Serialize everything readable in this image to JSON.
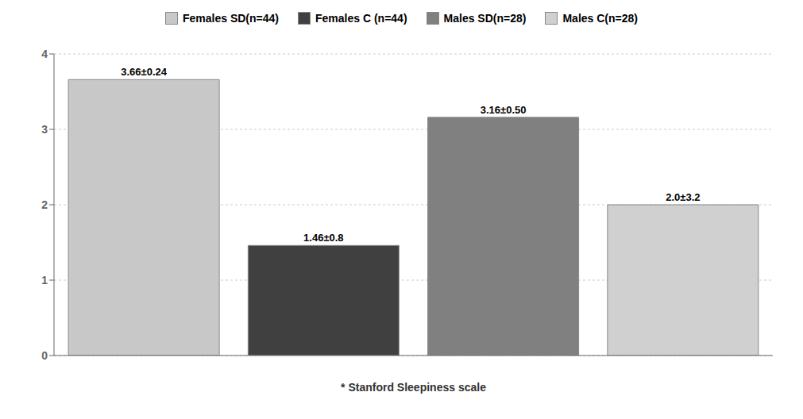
{
  "chart_data": {
    "type": "bar",
    "categories": [
      "Females SD(n=44)",
      "Females C (n=44)",
      "Males SD(n=28)",
      "Males C(n=28)"
    ],
    "values": [
      3.66,
      1.46,
      3.16,
      2.0
    ],
    "value_labels": [
      "3.66±0.24",
      "1.46±0.8",
      "3.16±0.50",
      "2.0±3.2"
    ],
    "colors": [
      "#c8c8c8",
      "#404040",
      "#808080",
      "#d0d0d0"
    ],
    "xlabel": "* Stanford Sleepiness scale",
    "ylim": [
      0,
      4
    ],
    "yticks": [
      0,
      1,
      2,
      3,
      4
    ],
    "grid": true,
    "legend": "top",
    "data_labels": true,
    "tick_labels": "y"
  }
}
